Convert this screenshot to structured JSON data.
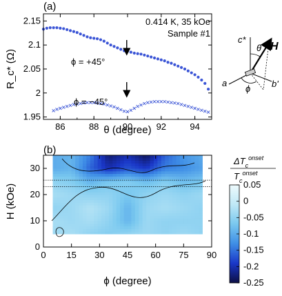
{
  "chart_data": [
    {
      "panel": "(a)",
      "type": "scatter",
      "xlabel": "θ (degree)",
      "ylabel": "R_c* (Ω)",
      "xlim": [
        85,
        95
      ],
      "ylim": [
        1.945,
        2.165
      ],
      "xticks": [
        "86",
        "88",
        "90",
        "92",
        "94"
      ],
      "yticks": [
        "1.95",
        "2",
        "2.05",
        "2.1",
        "2.15"
      ],
      "annotations": {
        "conditions": "0.414 K, 35 kOe",
        "sample": "Sample #1",
        "series_plus_label": "ϕ = +45°",
        "series_minus_label": "ϕ = −45°"
      },
      "series": [
        {
          "marker": "filled-circle",
          "color": "#3b55d6",
          "x": [
            85.0,
            85.2,
            85.4,
            85.6,
            85.8,
            86.0,
            86.2,
            86.4,
            86.6,
            86.8,
            87.0,
            87.2,
            87.4,
            87.6,
            87.8,
            88.0,
            88.2,
            88.4,
            88.6,
            88.8,
            89.0,
            89.2,
            89.4,
            89.6,
            89.8,
            90.0,
            90.2,
            90.4,
            90.6,
            90.8,
            91.0,
            91.2,
            91.4,
            91.6,
            91.8,
            92.0,
            92.2,
            92.4,
            92.6,
            92.8,
            93.0,
            93.2,
            93.4,
            93.6,
            93.8,
            94.0,
            94.2,
            94.4,
            94.6,
            94.8
          ],
          "y": [
            2.133,
            2.135,
            2.136,
            2.136,
            2.136,
            2.135,
            2.134,
            2.132,
            2.13,
            2.128,
            2.126,
            2.123,
            2.12,
            2.117,
            2.115,
            2.114,
            2.113,
            2.111,
            2.108,
            2.104,
            2.1,
            2.097,
            2.094,
            2.091,
            2.088,
            2.087,
            2.085,
            2.083,
            2.082,
            2.081,
            2.079,
            2.077,
            2.075,
            2.073,
            2.071,
            2.069,
            2.067,
            2.064,
            2.062,
            2.059,
            2.056,
            2.053,
            2.05,
            2.046,
            2.042,
            2.038,
            2.033,
            2.027,
            2.02,
            2.008
          ]
        },
        {
          "marker": "cross",
          "color": "#3b55d6",
          "x": [
            85.6,
            85.8,
            86.0,
            86.2,
            86.4,
            86.6,
            86.8,
            87.0,
            87.2,
            87.4,
            87.6,
            87.8,
            88.0,
            88.2,
            88.4,
            88.6,
            88.8,
            89.0,
            89.2,
            89.4,
            89.6,
            89.8,
            90.0,
            90.2,
            90.4,
            90.6,
            90.8,
            91.0,
            91.2,
            91.4,
            91.6,
            91.8,
            92.0,
            92.2,
            92.4,
            92.6,
            92.8,
            93.0,
            93.2,
            93.4,
            93.6,
            93.8,
            94.0,
            94.2,
            94.4,
            94.6,
            94.8
          ],
          "y": [
            1.963,
            1.966,
            1.968,
            1.97,
            1.972,
            1.974,
            1.976,
            1.977,
            1.978,
            1.979,
            1.98,
            1.98,
            1.98,
            1.979,
            1.978,
            1.977,
            1.975,
            1.973,
            1.971,
            1.968,
            1.965,
            1.962,
            1.961,
            1.964,
            1.968,
            1.972,
            1.975,
            1.978,
            1.98,
            1.981,
            1.982,
            1.982,
            1.982,
            1.982,
            1.981,
            1.98,
            1.979,
            1.978,
            1.976,
            1.974,
            1.972,
            1.97,
            1.968,
            1.966,
            1.964,
            1.962,
            1.96
          ]
        }
      ],
      "arrows_at_x": [
        89.95,
        89.95
      ]
    },
    {
      "panel": "(b)",
      "type": "heatmap",
      "xlabel": "ϕ (degree)",
      "ylabel": "H (kOe)",
      "xlim": [
        0,
        90
      ],
      "ylim": [
        0,
        35
      ],
      "xticks": [
        "0",
        "15",
        "30",
        "45",
        "60",
        "75",
        "90"
      ],
      "yticks": [
        "0",
        "10",
        "20",
        "30"
      ],
      "data_extent": {
        "phi": [
          5,
          85
        ],
        "H": [
          5,
          35
        ]
      },
      "dotted_lines_H": [
        23,
        25.5
      ],
      "colorbar": {
        "label_numerator": "ΔT",
        "label_denominator": "T",
        "label_sup": "onset",
        "label_sub": "c",
        "ticks": [
          "0.05",
          "0",
          "-0.05",
          "-0.1",
          "-0.15",
          "-0.2",
          "-0.25"
        ],
        "range": [
          -0.25,
          0.05
        ],
        "colors": [
          "#0d0f45",
          "#1a37c8",
          "#3f8ee6",
          "#79c8ef",
          "#bfe8f6",
          "#eefbfd"
        ]
      },
      "H_rows": [
        5,
        10,
        15,
        20,
        25,
        30,
        35
      ],
      "phi_cols": [
        5,
        15,
        25,
        35,
        45,
        55,
        65,
        75,
        85
      ],
      "values": [
        [
          -0.04,
          -0.03,
          -0.05,
          -0.06,
          -0.05,
          -0.04,
          -0.05,
          -0.04,
          -0.05
        ],
        [
          -0.03,
          -0.04,
          -0.03,
          -0.05,
          -0.09,
          -0.04,
          -0.05,
          -0.05,
          -0.05
        ],
        [
          -0.05,
          -0.04,
          -0.02,
          -0.04,
          -0.09,
          -0.04,
          -0.03,
          -0.04,
          -0.05
        ],
        [
          -0.03,
          -0.04,
          -0.05,
          -0.05,
          -0.07,
          -0.05,
          -0.04,
          -0.05,
          -0.04
        ],
        [
          -0.05,
          -0.06,
          -0.09,
          -0.07,
          -0.06,
          -0.08,
          -0.06,
          -0.08,
          -0.07
        ],
        [
          -0.1,
          -0.09,
          -0.16,
          -0.2,
          -0.17,
          -0.19,
          -0.14,
          -0.13,
          -0.11
        ],
        [
          -0.1,
          -0.09,
          -0.14,
          -0.23,
          -0.2,
          -0.24,
          -0.16,
          -0.12,
          -0.1
        ]
      ]
    }
  ],
  "inset": {
    "labels": {
      "c": "c*",
      "theta": "θ",
      "H": "H",
      "a": "a",
      "b": "b'",
      "phi": "ϕ"
    }
  }
}
